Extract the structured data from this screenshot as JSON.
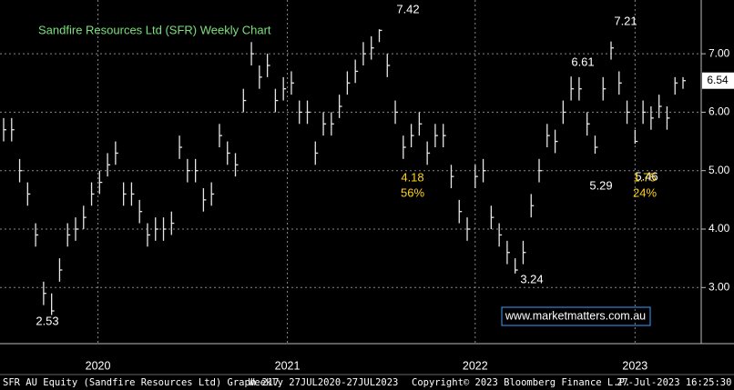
{
  "chart_data": {
    "type": "ohlc",
    "title": "Sandfire Resources Ltd (SFR) Weekly Chart",
    "watermark": "www.marketmatters.com.au",
    "footer": [
      "SFR AU Equity (Sandfire Resources Ltd) Graph 217",
      "Weekly 27JUL2020-27JUL2023",
      "Copyright© 2023 Bloomberg Finance L.P.",
      "27-Jul-2023 16:25:30"
    ],
    "annotations": [
      "7.42",
      "2.53",
      "6.61",
      "7.21",
      "5.29",
      "5.46",
      "3.24",
      "4.18",
      "56%",
      "1.75",
      "24%"
    ],
    "color": "#e6e6e6",
    "grid": true,
    "ylim": [
      2.04,
      7.92
    ],
    "yticks": [
      {
        "value": 3,
        "label": "3.00"
      },
      {
        "value": 4,
        "label": "4.00"
      },
      {
        "value": 5,
        "label": "5.00"
      },
      {
        "value": 6,
        "label": "6.00"
      },
      {
        "value": 7,
        "label": "7.00"
      }
    ],
    "xticks": [
      {
        "value": 11.8,
        "label": "2020"
      },
      {
        "value": 35.5,
        "label": "2021"
      },
      {
        "value": 59,
        "label": "2022"
      },
      {
        "value": 79,
        "label": "2023"
      }
    ],
    "categories": [
      null,
      null,
      null,
      null,
      null,
      null,
      null,
      null,
      null,
      null,
      null,
      null,
      null,
      null,
      null,
      null,
      null,
      null,
      null,
      null,
      null,
      null,
      null,
      null,
      null,
      null,
      null,
      null,
      null,
      null,
      null,
      null,
      null,
      null,
      null,
      null,
      null,
      null,
      null,
      null,
      null,
      null,
      null,
      null,
      null,
      null,
      null,
      null,
      null,
      null,
      null,
      null,
      null,
      null,
      null,
      null,
      null,
      null,
      null,
      null,
      null,
      null,
      null,
      null,
      null,
      null,
      null,
      null,
      null,
      null,
      null,
      null,
      null,
      null,
      null,
      null,
      null,
      null,
      null,
      null,
      null,
      null,
      null,
      null,
      null,
      null
    ],
    "close": [
      5.7,
      5.7,
      5.0,
      4.6,
      3.9,
      2.9,
      2.6,
      3.3,
      3.9,
      4.0,
      4.2,
      4.6,
      4.8,
      5.1,
      5.3,
      4.6,
      4.6,
      4.3,
      3.9,
      4.0,
      4.0,
      4.1,
      5.4,
      5.0,
      5.0,
      4.5,
      4.6,
      5.6,
      5.3,
      5.1,
      6.2,
      7.0,
      6.6,
      6.8,
      6.2,
      6.4,
      6.5,
      6.0,
      6.0,
      5.3,
      5.8,
      5.8,
      6.1,
      6.5,
      6.7,
      7.0,
      7.1,
      7.4,
      6.8,
      6.0,
      5.4,
      5.6,
      5.8,
      5.3,
      5.6,
      5.6,
      4.9,
      4.3,
      4.0,
      4.9,
      5.0,
      4.2,
      3.9,
      3.6,
      3.3,
      3.6,
      4.4,
      5.0,
      5.6,
      5.5,
      6.0,
      6.4,
      6.4,
      5.8,
      5.4,
      6.4,
      7.1,
      6.5,
      6.0,
      5.5,
      6.0,
      5.9,
      6.1,
      5.9,
      6.5,
      6.54
    ],
    "high": [
      5.9,
      5.9,
      5.2,
      4.8,
      4.1,
      3.1,
      2.9,
      3.5,
      4.1,
      4.2,
      4.4,
      4.8,
      5.0,
      5.3,
      5.5,
      4.8,
      4.8,
      4.5,
      4.1,
      4.2,
      4.2,
      4.3,
      5.6,
      5.2,
      5.2,
      4.7,
      4.8,
      5.8,
      5.5,
      5.3,
      6.4,
      7.2,
      6.8,
      7.0,
      6.4,
      6.6,
      6.7,
      6.2,
      6.2,
      5.5,
      6.0,
      6.0,
      6.3,
      6.7,
      6.9,
      7.2,
      7.3,
      7.42,
      7.0,
      6.2,
      5.6,
      5.8,
      6.0,
      5.5,
      5.8,
      5.8,
      5.1,
      4.5,
      4.2,
      5.1,
      5.2,
      4.4,
      4.1,
      3.8,
      3.5,
      3.8,
      4.6,
      5.2,
      5.8,
      5.7,
      6.2,
      6.61,
      6.6,
      6.0,
      5.6,
      6.6,
      7.21,
      6.7,
      6.2,
      5.7,
      6.2,
      6.1,
      6.3,
      6.1,
      6.6,
      6.6
    ],
    "low": [
      5.5,
      5.5,
      4.8,
      4.4,
      3.7,
      2.7,
      2.53,
      3.1,
      3.7,
      3.8,
      4.0,
      4.4,
      4.6,
      4.9,
      5.1,
      4.4,
      4.4,
      4.1,
      3.7,
      3.8,
      3.8,
      3.9,
      5.2,
      4.8,
      4.8,
      4.3,
      4.4,
      5.4,
      5.1,
      4.9,
      6.0,
      6.8,
      6.4,
      6.6,
      6.0,
      6.2,
      6.3,
      5.8,
      5.8,
      5.1,
      5.6,
      5.6,
      5.9,
      6.3,
      6.5,
      6.8,
      6.9,
      7.2,
      6.6,
      5.8,
      5.2,
      5.4,
      5.6,
      5.1,
      5.4,
      5.4,
      4.7,
      4.1,
      3.8,
      4.7,
      4.8,
      4.0,
      3.7,
      3.4,
      3.24,
      3.4,
      4.2,
      4.8,
      5.4,
      5.3,
      5.8,
      6.2,
      6.2,
      5.6,
      5.29,
      6.2,
      6.9,
      6.3,
      5.8,
      5.46,
      5.8,
      5.7,
      5.9,
      5.7,
      6.3,
      6.4
    ]
  }
}
